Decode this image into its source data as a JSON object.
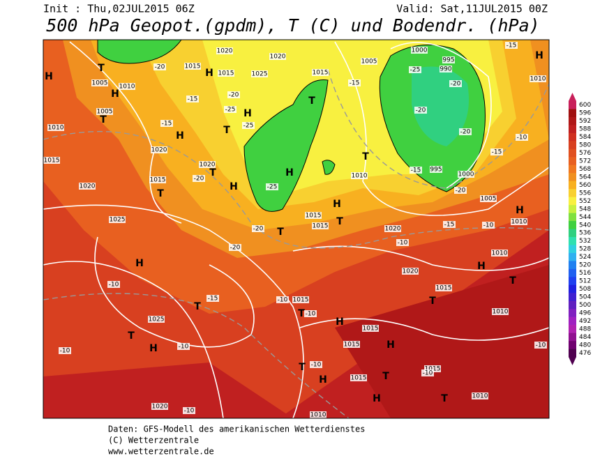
{
  "header": {
    "init": "Init : Thu,02JUL2015 06Z",
    "valid": "Valid: Sat,11JUL2015 00Z",
    "title": "500 hPa Geopot.(gpdm), T (C) und Bodendr. (hPa)"
  },
  "footer": {
    "lines": [
      "Daten: GFS-Modell des amerikanischen Wetterdienstes",
      "(C) Wetterzentrale",
      "www.wetterzentrale.de"
    ]
  },
  "colorbar": {
    "ticks": [
      600,
      596,
      592,
      588,
      584,
      580,
      576,
      572,
      568,
      564,
      560,
      556,
      552,
      548,
      544,
      540,
      536,
      532,
      528,
      524,
      520,
      516,
      512,
      508,
      504,
      500,
      496,
      492,
      488,
      484,
      480,
      476
    ],
    "colors": [
      "#c8205a",
      "#a01010",
      "#b01818",
      "#c02020",
      "#d03020",
      "#d84020",
      "#e05020",
      "#e86020",
      "#f07820",
      "#f09020",
      "#f8b020",
      "#f8d030",
      "#f8f040",
      "#c8f040",
      "#80e040",
      "#40d040",
      "#30d080",
      "#30e0b0",
      "#30d0e0",
      "#30b0f0",
      "#2080f0",
      "#2060f0",
      "#2040f0",
      "#2020e0",
      "#4020d0",
      "#6020c0",
      "#8020c0",
      "#a020c0",
      "#b020b0",
      "#901090",
      "#700070",
      "#500050"
    ]
  },
  "map": {
    "labels": [
      "H",
      "H",
      "H",
      "H",
      "H",
      "H",
      "H",
      "H",
      "H",
      "H",
      "H",
      "H",
      "H",
      "H",
      "H",
      "H",
      "H",
      "T",
      "T",
      "T",
      "T",
      "T",
      "T",
      "T",
      "T",
      "T",
      "T",
      "T",
      "T",
      "T",
      "T",
      "T",
      "T",
      "T",
      "1020",
      "1020",
      "1015",
      "1015",
      "1025",
      "1010",
      "1005",
      "1005",
      "1010",
      "1020",
      "1020",
      "1015",
      "1015",
      "1020",
      "1025",
      "1025",
      "1020",
      "1015",
      "1005",
      "1000",
      "995",
      "990",
      "995",
      "1000",
      "1005",
      "1010",
      "1010",
      "1015",
      "1015",
      "1020",
      "1020",
      "1015",
      "1010",
      "1010",
      "1010",
      "1015",
      "1015",
      "1015",
      "1015",
      "1015",
      "1010",
      "1010",
      "-20",
      "-15",
      "-15",
      "-20",
      "-25",
      "-25",
      "-20",
      "-20",
      "-15",
      "-10",
      "-10",
      "-10",
      "-10",
      "-10",
      "-15",
      "-10",
      "-10",
      "-15",
      "-10",
      "-15",
      "-20",
      "-20",
      "-25",
      "-20",
      "-15",
      "-20",
      "-15",
      "-20",
      "-25",
      "-10",
      "-10",
      "-10",
      "-10"
    ]
  }
}
